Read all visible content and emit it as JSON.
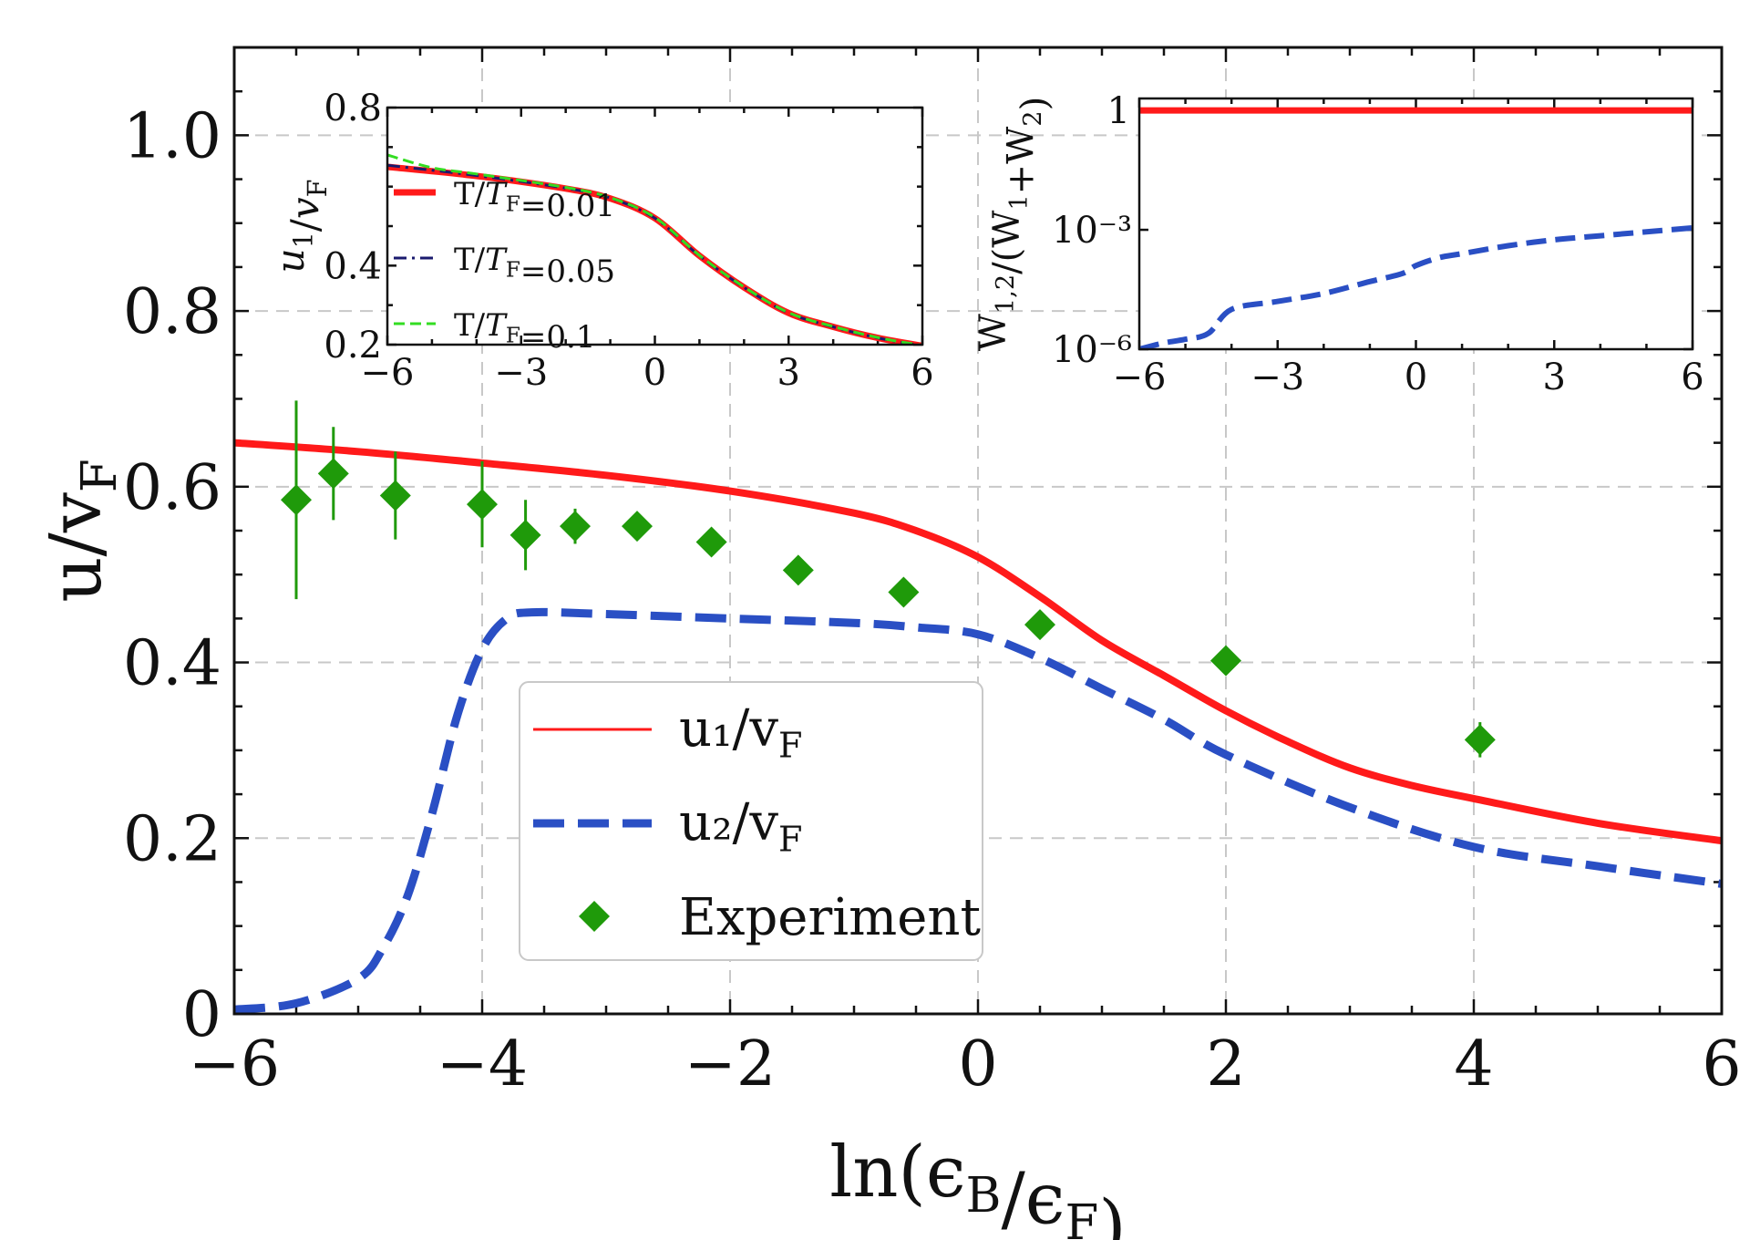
{
  "chart_data": [
    {
      "id": "main",
      "type": "line",
      "xlabel": "ln(ϵ_B/ϵ_F)",
      "ylabel": "u/v_F",
      "xlim": [
        -6,
        6
      ],
      "ylim": [
        0,
        1.1
      ],
      "xticks": [
        -6,
        -4,
        -2,
        0,
        2,
        4,
        6
      ],
      "xtick_labels": [
        "−6",
        "−4",
        "−2",
        "0",
        "2",
        "4",
        "6"
      ],
      "yticks": [
        0,
        0.2,
        0.4,
        0.6,
        0.8,
        1.0
      ],
      "ytick_labels": [
        "0",
        "0.2",
        "0.4",
        "0.6",
        "0.8",
        "1.0"
      ],
      "grid": true,
      "legend_position": "lower-center",
      "series": [
        {
          "name": "u₁/v_F",
          "style": "solid",
          "color": "#ff1a1a",
          "x": [
            -6,
            -5,
            -4,
            -3,
            -2,
            -1,
            -0.5,
            0,
            0.5,
            1,
            1.5,
            2,
            2.5,
            3,
            3.5,
            4,
            5,
            6
          ],
          "y": [
            0.65,
            0.64,
            0.627,
            0.613,
            0.595,
            0.57,
            0.55,
            0.52,
            0.475,
            0.425,
            0.385,
            0.345,
            0.31,
            0.28,
            0.26,
            0.245,
            0.217,
            0.197
          ]
        },
        {
          "name": "u₂/v_F",
          "style": "dashed",
          "color": "#2a4fc4",
          "x": [
            -6,
            -5.5,
            -5,
            -4.8,
            -4.6,
            -4.4,
            -4.2,
            -4,
            -3.8,
            -3.6,
            -3,
            -2,
            -1,
            -0.5,
            0,
            0.5,
            1,
            1.5,
            2,
            3,
            4,
            5,
            6
          ],
          "y": [
            0.005,
            0.012,
            0.04,
            0.075,
            0.135,
            0.23,
            0.34,
            0.415,
            0.45,
            0.457,
            0.455,
            0.45,
            0.445,
            0.44,
            0.432,
            0.405,
            0.37,
            0.335,
            0.295,
            0.235,
            0.19,
            0.168,
            0.148
          ]
        },
        {
          "name": "Experiment",
          "style": "markers",
          "color": "#1f9a0a",
          "x": [
            -5.5,
            -5.2,
            -4.7,
            -4.0,
            -3.65,
            -3.25,
            -2.75,
            -2.15,
            -1.45,
            -0.6,
            0.5,
            2.0,
            4.05
          ],
          "y": [
            0.585,
            0.615,
            0.59,
            0.58,
            0.545,
            0.555,
            0.555,
            0.537,
            0.505,
            0.48,
            0.443,
            0.402,
            0.312
          ],
          "err": [
            0.113,
            0.053,
            0.05,
            0.049,
            0.04,
            0.02,
            0.015,
            0.012,
            0.012,
            0.012,
            0.012,
            0.015,
            0.02
          ]
        }
      ]
    },
    {
      "id": "inset_left",
      "type": "line",
      "xlabel": "",
      "ylabel": "u₁/v_F",
      "xlim": [
        -6,
        6
      ],
      "ylim": [
        0.2,
        0.8
      ],
      "xticks": [
        -6,
        -3,
        0,
        3,
        6
      ],
      "xtick_labels": [
        "−6",
        "−3",
        "0",
        "3",
        "6"
      ],
      "yticks": [
        0.2,
        0.4,
        0.8
      ],
      "ytick_labels": [
        "0.2",
        "0.4",
        "0.8"
      ],
      "legend_position": "left",
      "series": [
        {
          "name": "T/T_F=0.01",
          "style": "solid",
          "color": "#ff1a1a",
          "x": [
            -6,
            -4,
            -2,
            -1,
            0,
            1,
            2,
            3,
            4,
            5,
            6
          ],
          "y": [
            0.65,
            0.627,
            0.595,
            0.57,
            0.52,
            0.425,
            0.345,
            0.28,
            0.245,
            0.217,
            0.197
          ]
        },
        {
          "name": "T/T_F=0.05",
          "style": "dashdot",
          "color": "#1a1a6e",
          "x": [
            -6,
            -4,
            -2,
            -1,
            0,
            1,
            2,
            3,
            4,
            5,
            6
          ],
          "y": [
            0.654,
            0.628,
            0.596,
            0.571,
            0.52,
            0.425,
            0.345,
            0.28,
            0.245,
            0.217,
            0.197
          ]
        },
        {
          "name": "T/T_F=0.1",
          "style": "dashed",
          "color": "#33dd22",
          "x": [
            -6,
            -5,
            -4,
            -2,
            -1,
            0,
            1,
            2,
            3,
            4,
            5,
            6
          ],
          "y": [
            0.68,
            0.648,
            0.632,
            0.598,
            0.572,
            0.522,
            0.426,
            0.346,
            0.281,
            0.246,
            0.218,
            0.198
          ]
        }
      ]
    },
    {
      "id": "inset_right",
      "type": "line",
      "xlabel": "",
      "ylabel": "W₁,₂/(W₁+W₂)",
      "xlim": [
        -6,
        6
      ],
      "ylim_log10": [
        -6,
        0.3
      ],
      "xticks": [
        -6,
        -3,
        0,
        3,
        6
      ],
      "xtick_labels": [
        "−6",
        "−3",
        "0",
        "3",
        "6"
      ],
      "yticks_log10": [
        -6,
        -3,
        0
      ],
      "ytick_labels": [
        "10⁻⁶",
        "10⁻³",
        "1"
      ],
      "series": [
        {
          "name": "W₁/(W₁+W₂)",
          "style": "solid",
          "color": "#ff1a1a",
          "x": [
            -6,
            6
          ],
          "log10_y": [
            0,
            0
          ]
        },
        {
          "name": "W₂/(W₁+W₂)",
          "style": "dashed",
          "color": "#2a4fc4",
          "x": [
            -6,
            -5.5,
            -5,
            -4.5,
            -4,
            -3,
            -2,
            -1,
            -0.3,
            0,
            0.5,
            1,
            2,
            3,
            4,
            5,
            6
          ],
          "log10_y": [
            -6,
            -5.85,
            -5.75,
            -5.6,
            -5,
            -4.8,
            -4.6,
            -4.3,
            -4.1,
            -3.9,
            -3.7,
            -3.6,
            -3.4,
            -3.25,
            -3.15,
            -3.05,
            -2.95
          ]
        }
      ]
    }
  ]
}
